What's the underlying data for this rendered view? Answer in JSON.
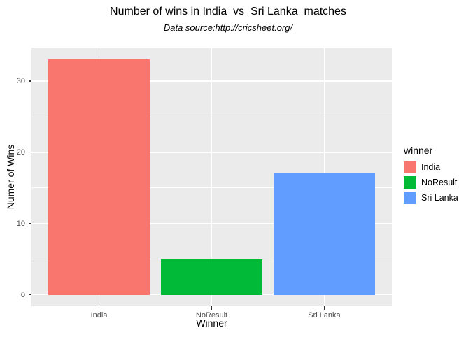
{
  "chart_data": {
    "type": "bar",
    "title": "Number of wins in India  vs  Sri Lanka  matches",
    "subtitle": "Data source:http://cricsheet.org/",
    "xlabel": "Winner",
    "ylabel": "Numer of Wins",
    "categories": [
      "India",
      "NoResult",
      "Sri Lanka"
    ],
    "values": [
      33,
      5,
      17
    ],
    "bar_colors": [
      "#F8766D",
      "#00BA38",
      "#619CFF"
    ],
    "yticks": [
      0,
      10,
      20,
      30
    ],
    "ylim": [
      -1.6,
      34.7
    ],
    "grid": {
      "major": "on",
      "minor": "on",
      "color": "#FFFFFF"
    },
    "panel_background": "#EBEBEB",
    "axis_text_color": "#4D4D4D",
    "legend": {
      "title": "winner",
      "position": "right",
      "entries": [
        {
          "label": "India",
          "color": "#F8766D"
        },
        {
          "label": "NoResult",
          "color": "#00BA38"
        },
        {
          "label": "Sri Lanka",
          "color": "#619CFF"
        }
      ]
    }
  }
}
